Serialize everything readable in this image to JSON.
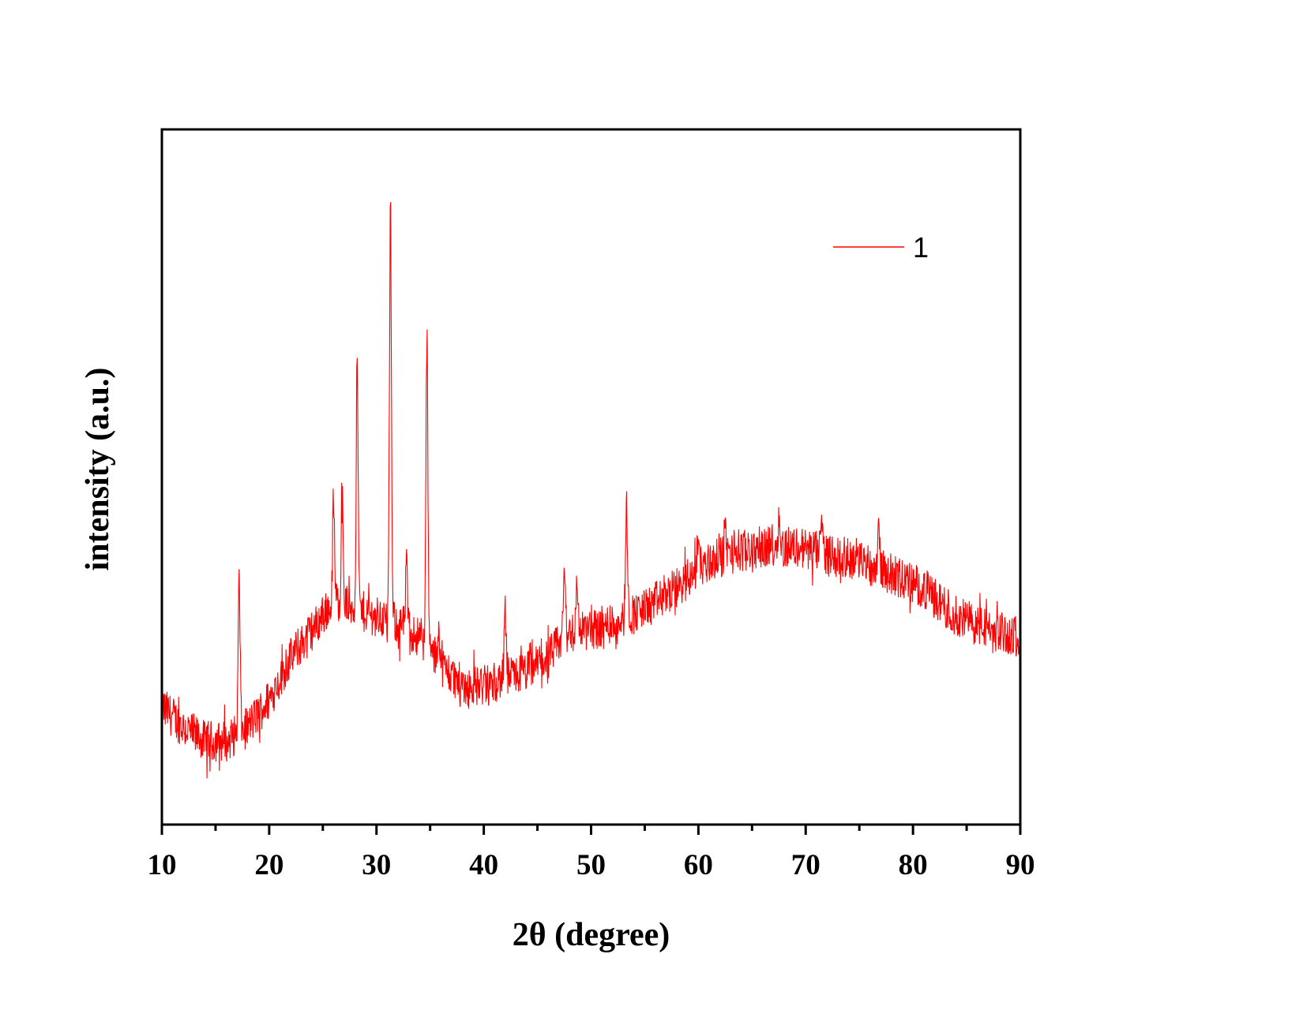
{
  "chart_data": {
    "type": "line",
    "xlabel": "2θ (degree)",
    "ylabel": "intensity (a.u.)",
    "xlim": [
      10,
      90
    ],
    "ylim": [
      0,
      1
    ],
    "x_ticks": [
      "10",
      "20",
      "30",
      "40",
      "50",
      "60",
      "70",
      "80",
      "90"
    ],
    "x_minor_step": 5,
    "y_tick_labels_shown": false,
    "grid": false,
    "legend": {
      "position": "top-right",
      "entries": [
        "1"
      ]
    },
    "series": [
      {
        "name": "1",
        "color": "#ff0000",
        "background_points": [
          [
            10,
            0.17
          ],
          [
            12,
            0.14
          ],
          [
            14,
            0.12
          ],
          [
            16,
            0.12
          ],
          [
            18,
            0.14
          ],
          [
            20,
            0.18
          ],
          [
            22,
            0.24
          ],
          [
            24,
            0.28
          ],
          [
            26,
            0.32
          ],
          [
            27,
            0.32
          ],
          [
            28,
            0.31
          ],
          [
            30,
            0.3
          ],
          [
            32,
            0.29
          ],
          [
            34,
            0.27
          ],
          [
            36,
            0.23
          ],
          [
            38,
            0.2
          ],
          [
            40,
            0.2
          ],
          [
            42,
            0.21
          ],
          [
            44,
            0.22
          ],
          [
            46,
            0.24
          ],
          [
            48,
            0.28
          ],
          [
            50,
            0.28
          ],
          [
            52,
            0.29
          ],
          [
            55,
            0.31
          ],
          [
            58,
            0.34
          ],
          [
            60,
            0.37
          ],
          [
            63,
            0.39
          ],
          [
            66,
            0.4
          ],
          [
            69,
            0.4
          ],
          [
            72,
            0.39
          ],
          [
            75,
            0.38
          ],
          [
            78,
            0.36
          ],
          [
            81,
            0.34
          ],
          [
            84,
            0.3
          ],
          [
            87,
            0.28
          ],
          [
            90,
            0.27
          ]
        ],
        "noise_amplitude": 0.03,
        "peaks": [
          {
            "x": 17.2,
            "y": 0.35
          },
          {
            "x": 26.0,
            "y": 0.47
          },
          {
            "x": 26.8,
            "y": 0.48
          },
          {
            "x": 28.2,
            "y": 0.66
          },
          {
            "x": 31.3,
            "y": 0.88
          },
          {
            "x": 32.8,
            "y": 0.37
          },
          {
            "x": 34.7,
            "y": 0.7
          },
          {
            "x": 35.8,
            "y": 0.29
          },
          {
            "x": 42.0,
            "y": 0.31
          },
          {
            "x": 47.5,
            "y": 0.37
          },
          {
            "x": 48.7,
            "y": 0.35
          },
          {
            "x": 53.3,
            "y": 0.46
          },
          {
            "x": 60.0,
            "y": 0.42
          },
          {
            "x": 62.5,
            "y": 0.43
          },
          {
            "x": 67.5,
            "y": 0.44
          },
          {
            "x": 71.5,
            "y": 0.43
          },
          {
            "x": 76.8,
            "y": 0.44
          }
        ]
      }
    ]
  }
}
